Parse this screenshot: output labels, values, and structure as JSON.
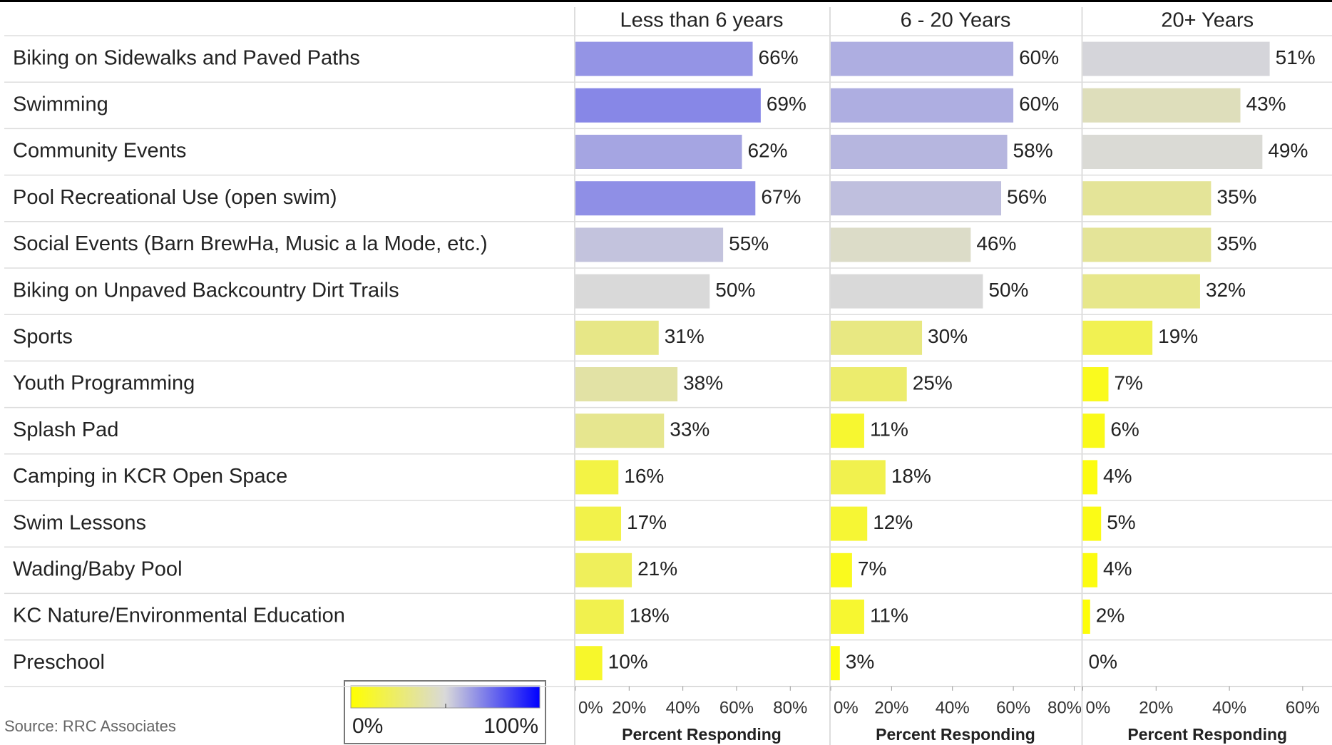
{
  "chart_data": {
    "type": "bar",
    "categories": [
      "Biking on Sidewalks and Paved Paths",
      "Swimming",
      "Community Events",
      "Pool Recreational Use (open swim)",
      "Social Events (Barn BrewHa, Music a la Mode, etc.)",
      "Biking on Unpaved Backcountry Dirt Trails",
      "Sports",
      "Youth Programming",
      "Splash Pad",
      "Camping in KCR Open Space",
      "Swim Lessons",
      "Wading/Baby Pool",
      "KC Nature/Environmental Education",
      "Preschool"
    ],
    "xlabel": "Percent Responding",
    "source": "Source: RRC Associates",
    "color_scale": {
      "colors": [
        "#ffff00",
        "#d9d9d9",
        "#0000ff"
      ],
      "range": [
        0,
        100
      ],
      "labels": [
        {
          "value": 0,
          "label": "0%"
        },
        {
          "value": 100,
          "label": "100%"
        }
      ]
    },
    "series": [
      {
        "name": "Less than 6 years",
        "xlim": [
          0,
          94
        ],
        "xticks": [
          {
            "value": 0,
            "label": "0%"
          },
          {
            "value": 20,
            "label": "20%"
          },
          {
            "value": 40,
            "label": "40%"
          },
          {
            "value": 60,
            "label": "60%"
          },
          {
            "value": 80,
            "label": "80%"
          }
        ],
        "values": [
          66,
          69,
          62,
          67,
          55,
          50,
          31,
          38,
          33,
          16,
          17,
          21,
          18,
          10
        ],
        "value_labels": [
          "66%",
          "69%",
          "62%",
          "67%",
          "55%",
          "50%",
          "31%",
          "38%",
          "33%",
          "16%",
          "17%",
          "21%",
          "18%",
          "10%"
        ]
      },
      {
        "name": "6 - 20 Years",
        "xlim": [
          0,
          82
        ],
        "xticks": [
          {
            "value": 0,
            "label": "0%"
          },
          {
            "value": 20,
            "label": "20%"
          },
          {
            "value": 40,
            "label": "40%"
          },
          {
            "value": 60,
            "label": "60%"
          },
          {
            "value": 80,
            "label": "80%"
          }
        ],
        "values": [
          60,
          60,
          58,
          56,
          46,
          50,
          30,
          25,
          11,
          18,
          12,
          7,
          11,
          3
        ],
        "value_labels": [
          "60%",
          "60%",
          "58%",
          "56%",
          "46%",
          "50%",
          "30%",
          "25%",
          "11%",
          "18%",
          "12%",
          "7%",
          "11%",
          "3%"
        ]
      },
      {
        "name": "20+ Years",
        "xlim": [
          0,
          68
        ],
        "xticks": [
          {
            "value": 0,
            "label": "0%"
          },
          {
            "value": 20,
            "label": "20%"
          },
          {
            "value": 40,
            "label": "40%"
          },
          {
            "value": 60,
            "label": "60%"
          }
        ],
        "values": [
          51,
          43,
          49,
          35,
          35,
          32,
          19,
          7,
          6,
          4,
          5,
          4,
          2,
          0
        ],
        "value_labels": [
          "51%",
          "43%",
          "49%",
          "35%",
          "35%",
          "32%",
          "19%",
          "7%",
          "6%",
          "4%",
          "5%",
          "4%",
          "2%",
          "0%"
        ]
      }
    ]
  }
}
